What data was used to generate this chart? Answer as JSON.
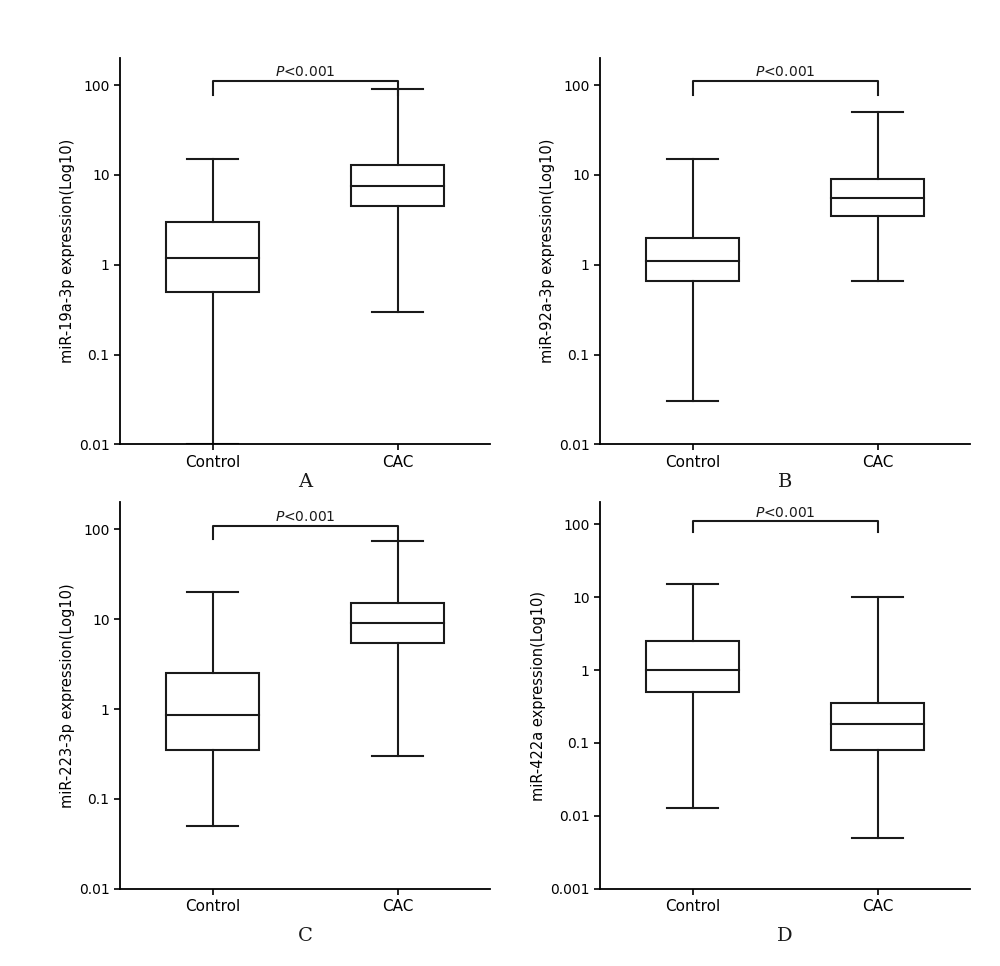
{
  "panels": [
    {
      "label": "A",
      "ylabel": "miR-19a-3p expression(Log10)",
      "ylim_log": [
        0.01,
        200
      ],
      "yticks": [
        0.01,
        0.1,
        1,
        10,
        100
      ],
      "ytick_labels": [
        "0.01",
        "0.1",
        "1",
        "10",
        "100"
      ],
      "categories": [
        "Control",
        "CAC"
      ],
      "boxes": [
        {
          "whisker_low": 0.01,
          "q1": 0.5,
          "median": 1.2,
          "q3": 3.0,
          "whisker_high": 15.0
        },
        {
          "whisker_low": 0.3,
          "q1": 4.5,
          "median": 7.5,
          "q3": 13.0,
          "whisker_high": 90.0
        }
      ],
      "pvalue_text": "P<0.001",
      "sig_bar_y": 110,
      "sig_tick_y": 78
    },
    {
      "label": "B",
      "ylabel": "miR-92a-3p expression(Log10)",
      "ylim_log": [
        0.01,
        200
      ],
      "yticks": [
        0.01,
        0.1,
        1,
        10,
        100
      ],
      "ytick_labels": [
        "0.01",
        "0.1",
        "1",
        "10",
        "100"
      ],
      "categories": [
        "Control",
        "CAC"
      ],
      "boxes": [
        {
          "whisker_low": 0.03,
          "q1": 0.65,
          "median": 1.1,
          "q3": 2.0,
          "whisker_high": 15.0
        },
        {
          "whisker_low": 0.65,
          "q1": 3.5,
          "median": 5.5,
          "q3": 9.0,
          "whisker_high": 50.0
        }
      ],
      "pvalue_text": "P<0.001",
      "sig_bar_y": 110,
      "sig_tick_y": 78
    },
    {
      "label": "C",
      "ylabel": "miR-223-3p expression(Log10)",
      "ylim_log": [
        0.01,
        200
      ],
      "yticks": [
        0.01,
        0.1,
        1,
        10,
        100
      ],
      "ytick_labels": [
        "0.01",
        "0.1",
        "1",
        "10",
        "100"
      ],
      "categories": [
        "Control",
        "CAC"
      ],
      "boxes": [
        {
          "whisker_low": 0.05,
          "q1": 0.35,
          "median": 0.85,
          "q3": 2.5,
          "whisker_high": 20.0
        },
        {
          "whisker_low": 0.3,
          "q1": 5.5,
          "median": 9.0,
          "q3": 15.0,
          "whisker_high": 75.0
        }
      ],
      "pvalue_text": "P<0.001",
      "sig_bar_y": 110,
      "sig_tick_y": 78
    },
    {
      "label": "D",
      "ylabel": "miR-422a expression(Log10)",
      "ylim_log": [
        0.001,
        200
      ],
      "yticks": [
        0.001,
        0.01,
        0.1,
        1,
        10,
        100
      ],
      "ytick_labels": [
        "0.001",
        "0.01",
        "0.1",
        "1",
        "10",
        "100"
      ],
      "categories": [
        "Control",
        "CAC"
      ],
      "boxes": [
        {
          "whisker_low": 0.013,
          "q1": 0.5,
          "median": 1.0,
          "q3": 2.5,
          "whisker_high": 15.0
        },
        {
          "whisker_low": 0.005,
          "q1": 0.08,
          "median": 0.18,
          "q3": 0.35,
          "whisker_high": 10.0
        }
      ],
      "pvalue_text": "P<0.001",
      "sig_bar_y": 110,
      "sig_tick_y": 78
    }
  ],
  "box_width": 0.5,
  "cap_ratio": 0.55,
  "line_color": "#1a1a1a",
  "line_width": 1.5,
  "bg_color": "#ffffff",
  "font_size_ylabel": 10.5,
  "font_size_tick": 10,
  "font_size_pval": 10,
  "font_size_panel": 14,
  "x_positions": [
    0.5,
    1.5
  ],
  "xlim": [
    0,
    2
  ]
}
